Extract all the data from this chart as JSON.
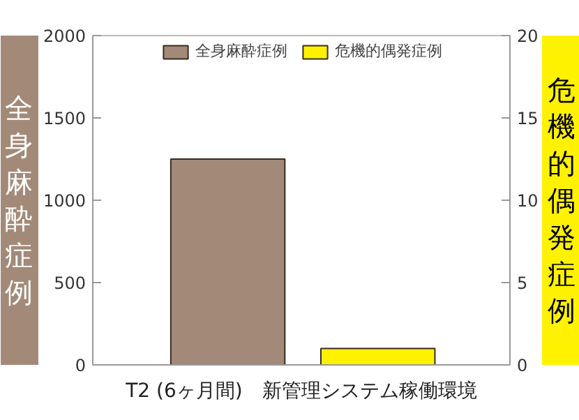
{
  "chart_data": {
    "type": "bar",
    "categories": [
      null,
      null
    ],
    "series": [
      {
        "name": "全身麻酔症例",
        "color": "#a38a78",
        "values": [
          1250,
          null
        ]
      },
      {
        "name": "危機的偶発症例",
        "color": "#fff200",
        "values": [
          null,
          1
        ],
        "axis": "y2"
      }
    ],
    "ylabel": "全身麻酔症例",
    "y2label": "危機的偶発症例",
    "xlabel": "T2 (6ヶ月間)　新管理システム稼働環境",
    "ylim": [
      0,
      2000
    ],
    "yticks": [
      0,
      500,
      1000,
      1500,
      2000
    ],
    "y2lim": [
      0,
      20
    ],
    "y2ticks": [
      0,
      5,
      10,
      15,
      20
    ],
    "grid": false,
    "legend": "top"
  }
}
